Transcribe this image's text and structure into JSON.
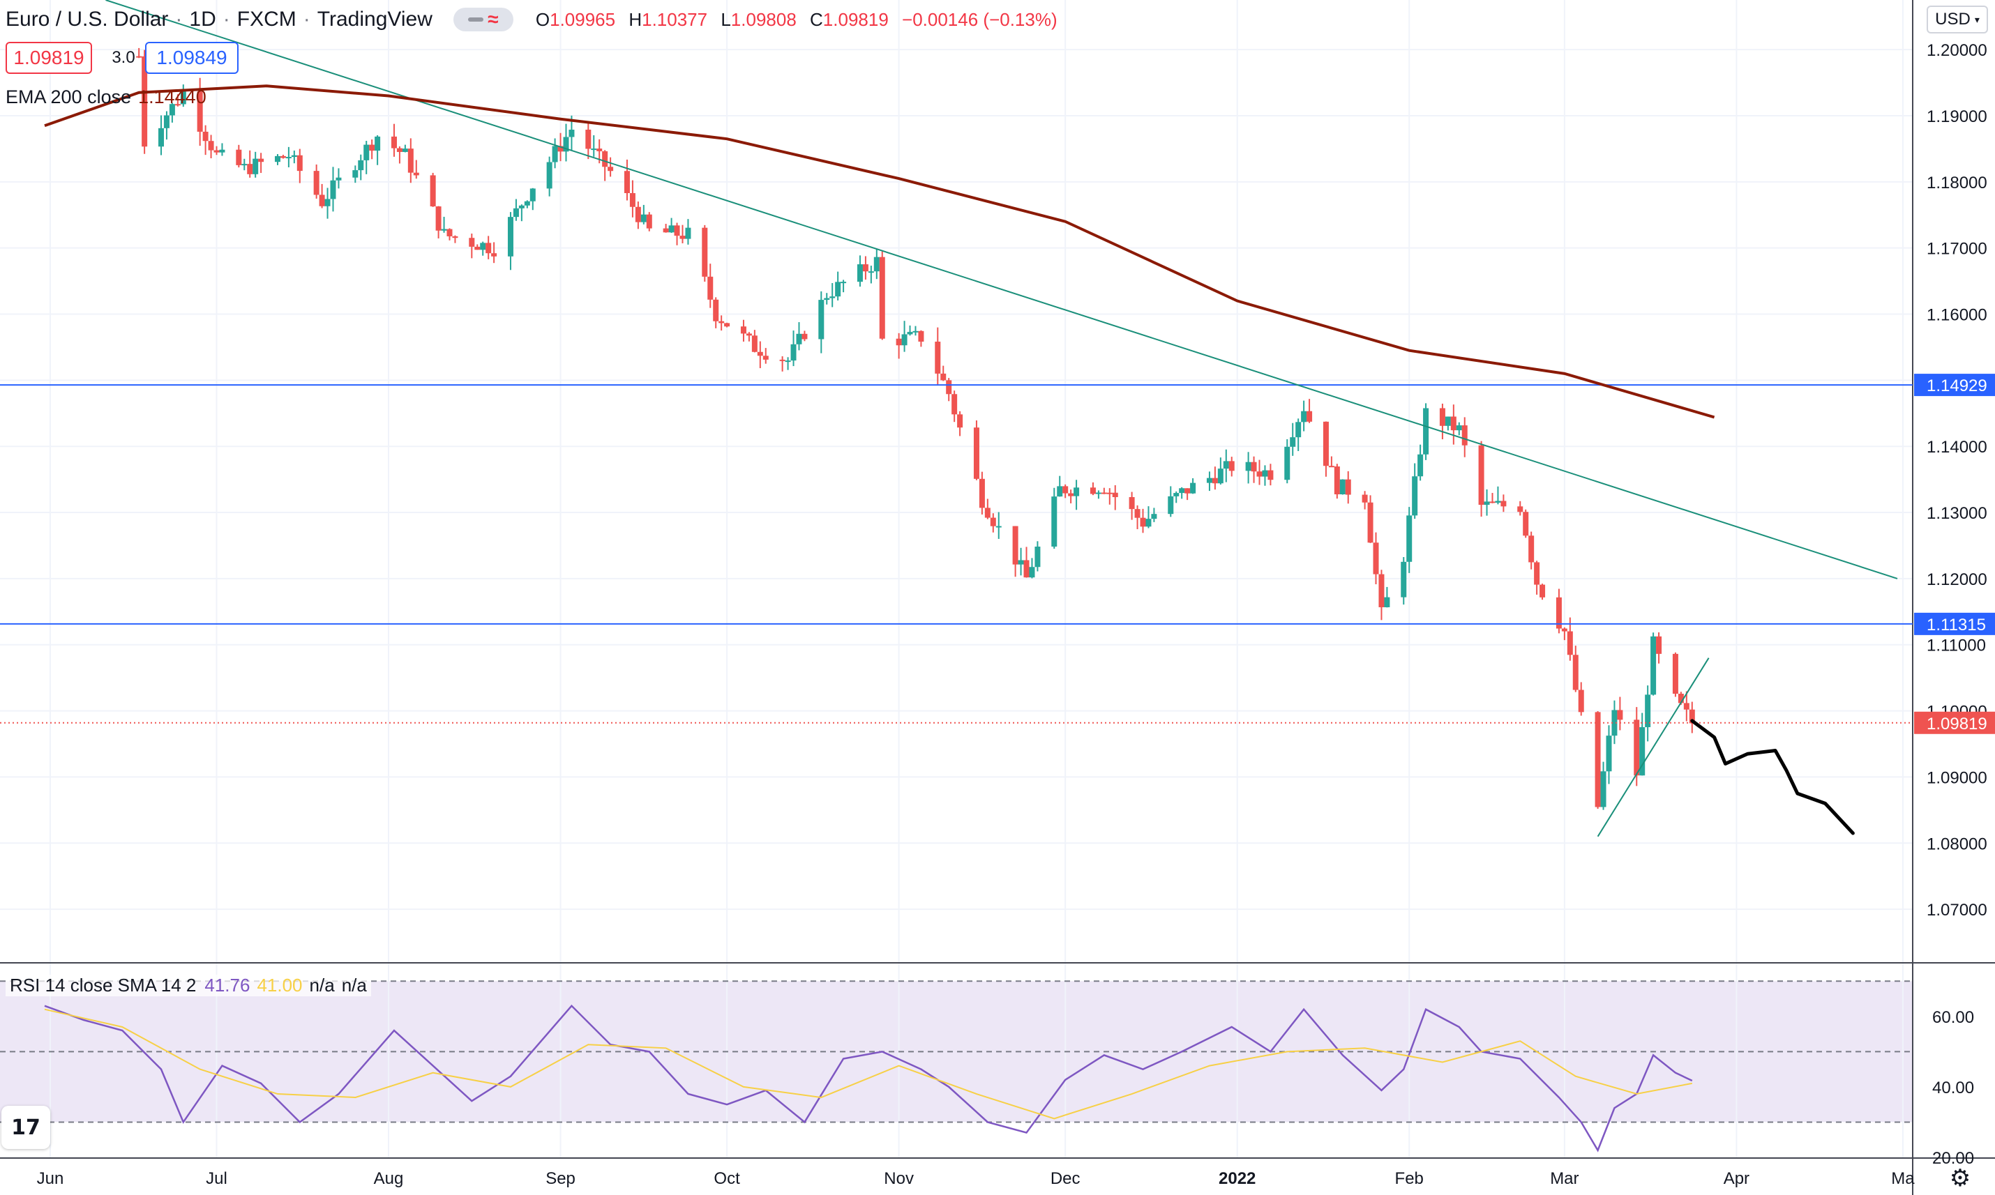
{
  "header": {
    "symbol": "Euro / U.S. Dollar",
    "interval": "1D",
    "exchange": "FXCM",
    "source": "TradingView",
    "open_label": "O",
    "open": "1.09965",
    "high_label": "H",
    "high": "1.10377",
    "low_label": "L",
    "low": "1.09808",
    "close_label": "C",
    "close": "1.09819",
    "change": "−0.00146 (−0.13%)"
  },
  "quote": {
    "sell": "1.09819",
    "spread": "3.0",
    "buy": "1.09849"
  },
  "ema_legend": {
    "label": "EMA 200 close",
    "value": "1.14440"
  },
  "rsi_legend": {
    "label": "RSI 14 close SMA 14 2",
    "rsi": "41.76",
    "sma": "41.00",
    "na1": "n/a",
    "na2": "n/a"
  },
  "currency_button": "USD",
  "colors": {
    "up": "#26a69a",
    "down": "#ef5350",
    "ema": "#8b1a05",
    "trendline": "#1a8f7a",
    "hline": "#2962ff",
    "rsi": "#7e57c2",
    "rsi_ma": "#f7d046",
    "band": "#ede7f6",
    "drawing": "#000000"
  },
  "icons": {
    "logo": "tradingview-logo-icon",
    "settings": "gear-icon"
  },
  "chart_data": [
    {
      "type": "candlestick",
      "title": "Euro / U.S. Dollar, 1D, FXCM",
      "y_range": [
        1.062,
        1.2075
      ],
      "y_ticks": [
        "1.20000",
        "1.19000",
        "1.18000",
        "1.17000",
        "1.16000",
        "1.15000",
        "1.14000",
        "1.13000",
        "1.12000",
        "1.11000",
        "1.10000",
        "1.09000",
        "1.08000",
        "1.07000"
      ],
      "x_labels": [
        {
          "date": "2021-06-01",
          "label": "Jun"
        },
        {
          "date": "2021-07-01",
          "label": "Jul"
        },
        {
          "date": "2021-08-01",
          "label": "Aug"
        },
        {
          "date": "2021-09-01",
          "label": "Sep"
        },
        {
          "date": "2021-10-01",
          "label": "Oct"
        },
        {
          "date": "2021-11-01",
          "label": "Nov"
        },
        {
          "date": "2021-12-01",
          "label": "Dec"
        },
        {
          "date": "2022-01-01",
          "label": "2022"
        },
        {
          "date": "2022-02-01",
          "label": "Feb"
        },
        {
          "date": "2022-03-01",
          "label": "Mar"
        },
        {
          "date": "2022-04-01",
          "label": "Apr"
        },
        {
          "date": "2022-05-01",
          "label": "Ma"
        }
      ],
      "close_path": [
        [
          "2021-06-17",
          1.199
        ],
        [
          "2021-06-18",
          1.186
        ],
        [
          "2021-06-25",
          1.1935
        ],
        [
          "2021-07-01",
          1.184
        ],
        [
          "2021-07-06",
          1.182
        ],
        [
          "2021-07-14",
          1.184
        ],
        [
          "2021-07-20",
          1.177
        ],
        [
          "2021-07-30",
          1.187
        ],
        [
          "2021-08-04",
          1.184
        ],
        [
          "2021-08-11",
          1.172
        ],
        [
          "2021-08-20",
          1.17
        ],
        [
          "2021-08-27",
          1.1795
        ],
        [
          "2021-09-03",
          1.188
        ],
        [
          "2021-09-10",
          1.1815
        ],
        [
          "2021-09-17",
          1.1725
        ],
        [
          "2021-09-24",
          1.172
        ],
        [
          "2021-09-29",
          1.16
        ],
        [
          "2021-10-06",
          1.155
        ],
        [
          "2021-10-12",
          1.153
        ],
        [
          "2021-10-19",
          1.163
        ],
        [
          "2021-10-28",
          1.168
        ],
        [
          "2021-10-29",
          1.156
        ],
        [
          "2021-11-05",
          1.1565
        ],
        [
          "2021-11-10",
          1.148
        ],
        [
          "2021-11-16",
          1.132
        ],
        [
          "2021-11-24",
          1.12
        ],
        [
          "2021-11-30",
          1.1335
        ],
        [
          "2021-12-08",
          1.134
        ],
        [
          "2021-12-15",
          1.1285
        ],
        [
          "2021-12-22",
          1.133
        ],
        [
          "2021-12-31",
          1.137
        ],
        [
          "2022-01-07",
          1.136
        ],
        [
          "2022-01-13",
          1.146
        ],
        [
          "2022-01-19",
          1.134
        ],
        [
          "2022-01-24",
          1.1325
        ],
        [
          "2022-01-27",
          1.1145
        ],
        [
          "2022-01-31",
          1.1235
        ],
        [
          "2022-02-04",
          1.145
        ],
        [
          "2022-02-10",
          1.1425
        ],
        [
          "2022-02-14",
          1.131
        ],
        [
          "2022-02-21",
          1.131
        ],
        [
          "2022-02-24",
          1.1195
        ],
        [
          "2022-03-01",
          1.112
        ],
        [
          "2022-03-07",
          1.0855
        ],
        [
          "2022-03-10",
          1.1005
        ],
        [
          "2022-03-14",
          1.0905
        ],
        [
          "2022-03-17",
          1.11
        ],
        [
          "2022-03-21",
          1.1015
        ],
        [
          "2022-03-24",
          1.0982
        ]
      ],
      "current_price": "1.09819",
      "overlays": {
        "ema200": {
          "label": "EMA 200 close",
          "value": "1.14440",
          "points": [
            [
              "2021-05-31",
              1.1885
            ],
            [
              "2021-06-17",
              1.1935
            ],
            [
              "2021-07-10",
              1.1945
            ],
            [
              "2021-08-01",
              1.193
            ],
            [
              "2021-09-01",
              1.1895
            ],
            [
              "2021-10-01",
              1.1865
            ],
            [
              "2021-11-01",
              1.1805
            ],
            [
              "2021-12-01",
              1.174
            ],
            [
              "2022-01-01",
              1.162
            ],
            [
              "2022-02-01",
              1.1545
            ],
            [
              "2022-03-01",
              1.151
            ],
            [
              "2022-03-28",
              1.1444
            ]
          ]
        },
        "horizontal_lines": [
          {
            "value": 1.14929,
            "label": "1.14929"
          },
          {
            "value": 1.11315,
            "label": "1.11315"
          }
        ],
        "trendlines": [
          {
            "from": [
              "2021-06-11",
              1.2075
            ],
            "to": [
              "2022-04-30",
              1.12
            ]
          },
          {
            "from": [
              "2022-03-07",
              1.081
            ],
            "to": [
              "2022-03-27",
              1.108
            ]
          }
        ],
        "drawn_projection": [
          [
            "2022-03-24",
            1.0985
          ],
          [
            "2022-03-28",
            1.096
          ],
          [
            "2022-03-30",
            1.092
          ],
          [
            "2022-04-03",
            1.0935
          ],
          [
            "2022-04-08",
            1.094
          ],
          [
            "2022-04-10",
            1.091
          ],
          [
            "2022-04-12",
            1.0875
          ],
          [
            "2022-04-17",
            1.086
          ],
          [
            "2022-04-22",
            1.0815
          ]
        ]
      }
    },
    {
      "type": "line",
      "title": "RSI 14 close SMA 14 2",
      "y_range": [
        20,
        75
      ],
      "y_ticks": [
        "60.00",
        "40.00",
        "20.00"
      ],
      "band": {
        "upper": 70,
        "middle": 50,
        "lower": 30
      },
      "series": [
        {
          "name": "RSI",
          "points": [
            [
              "2021-05-31",
              63
            ],
            [
              "2021-06-07",
              59
            ],
            [
              "2021-06-14",
              56
            ],
            [
              "2021-06-21",
              45
            ],
            [
              "2021-06-25",
              30
            ],
            [
              "2021-07-02",
              46
            ],
            [
              "2021-07-09",
              41
            ],
            [
              "2021-07-16",
              30
            ],
            [
              "2021-07-23",
              38
            ],
            [
              "2021-08-02",
              56
            ],
            [
              "2021-08-09",
              46
            ],
            [
              "2021-08-16",
              36
            ],
            [
              "2021-08-23",
              43
            ],
            [
              "2021-09-03",
              63
            ],
            [
              "2021-09-10",
              52
            ],
            [
              "2021-09-17",
              50
            ],
            [
              "2021-09-24",
              38
            ],
            [
              "2021-10-01",
              35
            ],
            [
              "2021-10-08",
              39
            ],
            [
              "2021-10-15",
              30
            ],
            [
              "2021-10-22",
              48
            ],
            [
              "2021-10-29",
              50
            ],
            [
              "2021-11-05",
              45
            ],
            [
              "2021-11-10",
              40
            ],
            [
              "2021-11-17",
              30
            ],
            [
              "2021-11-24",
              27
            ],
            [
              "2021-12-01",
              42
            ],
            [
              "2021-12-08",
              49
            ],
            [
              "2021-12-15",
              45
            ],
            [
              "2021-12-22",
              50
            ],
            [
              "2021-12-31",
              57
            ],
            [
              "2022-01-07",
              50
            ],
            [
              "2022-01-13",
              62
            ],
            [
              "2022-01-20",
              49
            ],
            [
              "2022-01-27",
              39
            ],
            [
              "2022-01-31",
              45
            ],
            [
              "2022-02-04",
              62
            ],
            [
              "2022-02-10",
              57
            ],
            [
              "2022-02-14",
              50
            ],
            [
              "2022-02-21",
              48
            ],
            [
              "2022-02-28",
              37
            ],
            [
              "2022-03-04",
              30
            ],
            [
              "2022-03-07",
              22
            ],
            [
              "2022-03-10",
              34
            ],
            [
              "2022-03-14",
              38
            ],
            [
              "2022-03-17",
              49
            ],
            [
              "2022-03-21",
              44
            ],
            [
              "2022-03-24",
              41.76
            ]
          ]
        },
        {
          "name": "SMA",
          "points": [
            [
              "2021-05-31",
              62
            ],
            [
              "2021-06-14",
              57
            ],
            [
              "2021-06-28",
              45
            ],
            [
              "2021-07-12",
              38
            ],
            [
              "2021-07-26",
              37
            ],
            [
              "2021-08-09",
              44
            ],
            [
              "2021-08-23",
              40
            ],
            [
              "2021-09-06",
              52
            ],
            [
              "2021-09-20",
              51
            ],
            [
              "2021-10-04",
              40
            ],
            [
              "2021-10-18",
              37
            ],
            [
              "2021-11-01",
              46
            ],
            [
              "2021-11-15",
              38
            ],
            [
              "2021-11-29",
              31
            ],
            [
              "2021-12-13",
              38
            ],
            [
              "2021-12-27",
              46
            ],
            [
              "2022-01-10",
              50
            ],
            [
              "2022-01-24",
              51
            ],
            [
              "2022-02-07",
              47
            ],
            [
              "2022-02-21",
              53
            ],
            [
              "2022-03-03",
              43
            ],
            [
              "2022-03-14",
              38
            ],
            [
              "2022-03-24",
              41.0
            ]
          ]
        }
      ]
    }
  ]
}
